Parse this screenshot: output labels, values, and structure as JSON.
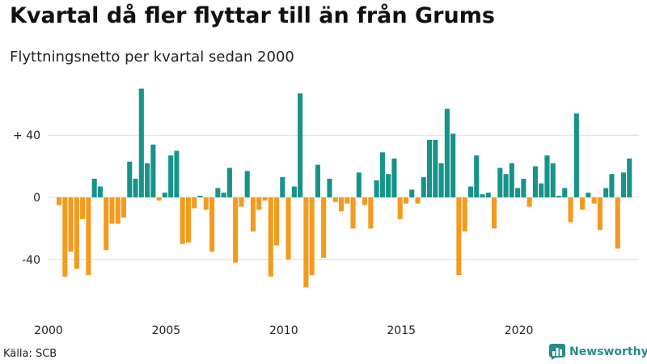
{
  "header": {
    "title": "Kvartal då fler flyttar till än från Grums",
    "subtitle": "Flyttningsnetto per kvartal sedan 2000"
  },
  "footer": {
    "source": "Källa: SCB",
    "brand": "Newsworthy",
    "brand_icon": "chart-logo-icon"
  },
  "colors": {
    "positive": "#17948a",
    "negative": "#f29b1e",
    "grid": "#dddddd",
    "brand": "#2a8c88"
  },
  "chart_data": {
    "type": "bar",
    "title": "Kvartal då fler flyttar till än från Grums",
    "subtitle": "Flyttningsnetto per kvartal sedan 2000",
    "xlabel": "",
    "ylabel": "",
    "ylim": [
      -62,
      72
    ],
    "grid": true,
    "y_ticks": [
      {
        "value": 40,
        "label": "+ 40"
      },
      {
        "value": 0,
        "label": "0"
      },
      {
        "value": -40,
        "label": "-40"
      }
    ],
    "x_ticks": [
      "2000",
      "2005",
      "2010",
      "2015",
      "2020"
    ],
    "start_year": 2000,
    "values": [
      -5,
      -51,
      -35,
      -46,
      -14,
      -50,
      12,
      7,
      -34,
      -17,
      -17,
      -13,
      23,
      12,
      70,
      22,
      34,
      -2,
      3,
      27,
      30,
      -30,
      -29,
      -7,
      1,
      -8,
      -35,
      6,
      3,
      19,
      -42,
      -6,
      17,
      -22,
      -8,
      -2,
      -51,
      -31,
      13,
      -40,
      7,
      67,
      -58,
      -50,
      21,
      -39,
      12,
      -3,
      -9,
      -4,
      -20,
      16,
      -5,
      -20,
      11,
      29,
      15,
      25,
      -14,
      -4,
      5,
      -4,
      13,
      37,
      37,
      22,
      57,
      41,
      -50,
      -22,
      7,
      27,
      2,
      3,
      -20,
      19,
      15,
      22,
      6,
      12,
      -6,
      20,
      9,
      27,
      22,
      1,
      6,
      -16,
      54,
      -8,
      3,
      -4,
      -21,
      6,
      15,
      -33,
      16,
      25
    ]
  }
}
